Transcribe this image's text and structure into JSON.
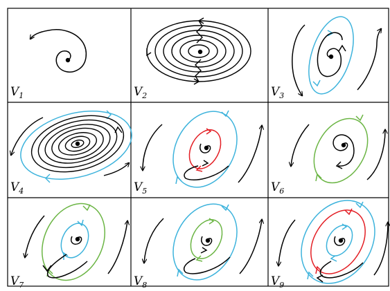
{
  "colors": {
    "grid": "#000000",
    "black": "#000000",
    "blue": "#3db3dc",
    "red": "#e31e24",
    "green": "#6bb544"
  },
  "panels": [
    {
      "name": "V",
      "sub": "1",
      "curves": []
    },
    {
      "name": "V",
      "sub": "2",
      "curves": []
    },
    {
      "name": "V",
      "sub": "3",
      "curves": [
        "blue"
      ]
    },
    {
      "name": "V",
      "sub": "4",
      "curves": [
        "blue"
      ]
    },
    {
      "name": "V",
      "sub": "5",
      "curves": [
        "blue",
        "red"
      ]
    },
    {
      "name": "V",
      "sub": "6",
      "curves": [
        "green"
      ]
    },
    {
      "name": "V",
      "sub": "7",
      "curves": [
        "green",
        "blue"
      ]
    },
    {
      "name": "V",
      "sub": "8",
      "curves": [
        "blue",
        "green"
      ]
    },
    {
      "name": "V",
      "sub": "9",
      "curves": [
        "blue",
        "red",
        "blue"
      ]
    }
  ]
}
